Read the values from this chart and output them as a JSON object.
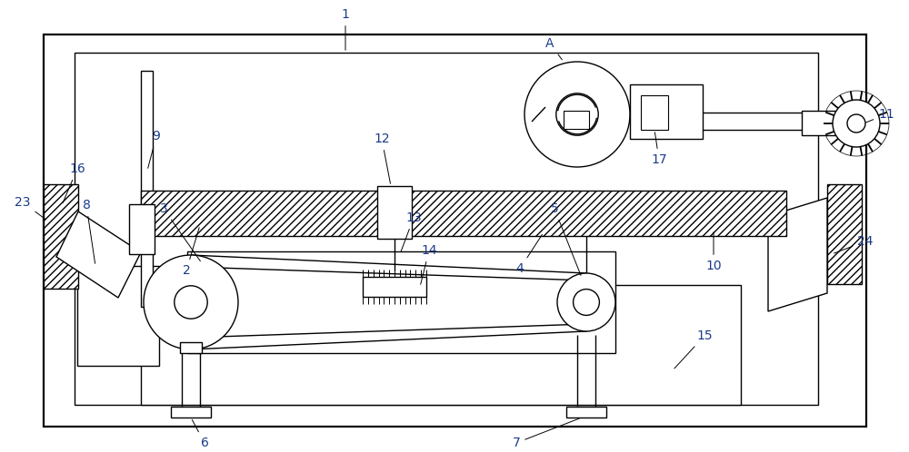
{
  "fig_width": 10.0,
  "fig_height": 4.98,
  "dpi": 100,
  "bg_color": "#ffffff",
  "label_color": "#1a3a8a",
  "label_fs": 10,
  "lw": 1.0,
  "lw2": 1.6,
  "xlim": [
    0,
    10
  ],
  "ylim": [
    0,
    4.98
  ]
}
